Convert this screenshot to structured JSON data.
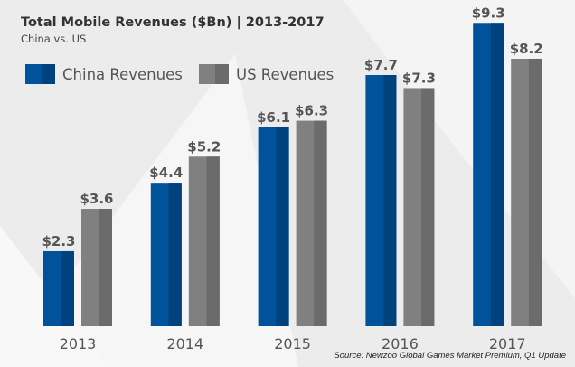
{
  "chart_data": {
    "type": "bar",
    "title": "Total Mobile Revenues ($Bn) | 2013-2017",
    "subtitle": "China vs. US",
    "categories": [
      "2013",
      "2014",
      "2015",
      "2016",
      "2017"
    ],
    "series": [
      {
        "name": "China Revenues",
        "values": [
          2.3,
          4.4,
          6.1,
          7.7,
          9.3
        ],
        "labels": [
          "$2.3",
          "$4.4",
          "$6.1",
          "$7.7",
          "$9.3"
        ],
        "color": "#00529b",
        "shade": "#00427d"
      },
      {
        "name": "US Revenues",
        "values": [
          3.6,
          5.2,
          6.3,
          7.3,
          8.2
        ],
        "labels": [
          "$3.6",
          "$5.2",
          "$6.3",
          "$7.3",
          "$8.2"
        ],
        "color": "#808080",
        "shade": "#6b6b6b"
      }
    ],
    "ylim": [
      0,
      9.5
    ],
    "grid": false,
    "legend": "top-left",
    "source": "Source: Newzoo Global Games Market Premium, Q1 Update"
  }
}
